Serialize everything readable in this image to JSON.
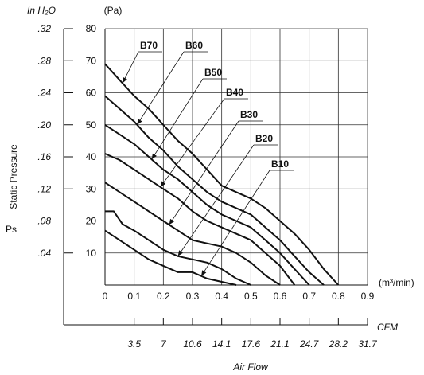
{
  "chart_data": {
    "type": "line",
    "ylabel": "Static Pressure",
    "ylabel_symbol": "Ps",
    "y_unit_primary": "(Pa)",
    "y_unit_secondary": "In H₂O",
    "x_unit_primary": "(m³/min)",
    "x_unit_secondary": "CFM",
    "xlabel": "Air Flow",
    "xlim": [
      0,
      0.9
    ],
    "ylim": [
      0,
      80
    ],
    "grid": true,
    "x_ticks": [
      "0",
      "0.1",
      "0.2",
      "0.3",
      "0.4",
      "0.5",
      "0.6",
      "0.7",
      "0.8",
      "0.9"
    ],
    "y_ticks": [
      "10",
      "20",
      "30",
      "40",
      "50",
      "60",
      "70",
      "80"
    ],
    "y_ticks_secondary": [
      {
        "label": ".04",
        "pa": 10
      },
      {
        "label": ".08",
        "pa": 20
      },
      {
        "label": ".12",
        "pa": 30
      },
      {
        "label": ".16",
        "pa": 40
      },
      {
        "label": ".20",
        "pa": 50
      },
      {
        "label": ".24",
        "pa": 60
      },
      {
        "label": ".28",
        "pa": 70
      },
      {
        "label": ".32",
        "pa": 80
      }
    ],
    "x_ticks_secondary": [
      {
        "label": "3.5",
        "m3": 0.1
      },
      {
        "label": "7",
        "m3": 0.2
      },
      {
        "label": "10.6",
        "m3": 0.3
      },
      {
        "label": "14.1",
        "m3": 0.4
      },
      {
        "label": "17.6",
        "m3": 0.5
      },
      {
        "label": "21.1",
        "m3": 0.6
      },
      {
        "label": "24.7",
        "m3": 0.7
      },
      {
        "label": "28.2",
        "m3": 0.8
      },
      {
        "label": "31.7",
        "m3": 0.9
      }
    ],
    "series": [
      {
        "name": "B70",
        "x": [
          0,
          0.05,
          0.1,
          0.15,
          0.2,
          0.25,
          0.3,
          0.35,
          0.4,
          0.45,
          0.5,
          0.55,
          0.6,
          0.65,
          0.7,
          0.75,
          0.8
        ],
        "y": [
          69,
          64,
          59,
          55,
          50,
          45,
          41,
          36,
          31,
          29,
          27,
          24,
          20,
          16,
          11,
          5,
          0
        ]
      },
      {
        "name": "B60",
        "x": [
          0,
          0.05,
          0.1,
          0.15,
          0.2,
          0.25,
          0.3,
          0.35,
          0.4,
          0.45,
          0.5,
          0.55,
          0.6,
          0.65,
          0.7,
          0.75
        ],
        "y": [
          59,
          55,
          51,
          46,
          42,
          37,
          33,
          29,
          26,
          24,
          22,
          18,
          14,
          9,
          4,
          0
        ]
      },
      {
        "name": "B50",
        "x": [
          0,
          0.05,
          0.1,
          0.15,
          0.2,
          0.25,
          0.3,
          0.35,
          0.4,
          0.45,
          0.5,
          0.55,
          0.6,
          0.65,
          0.7
        ],
        "y": [
          50,
          47,
          44,
          40,
          36,
          33,
          29,
          25,
          22,
          20,
          18,
          14,
          10,
          5,
          0
        ]
      },
      {
        "name": "B40",
        "x": [
          0,
          0.05,
          0.1,
          0.15,
          0.2,
          0.25,
          0.3,
          0.35,
          0.4,
          0.45,
          0.5,
          0.55,
          0.6,
          0.65
        ],
        "y": [
          41,
          39,
          36,
          33,
          30,
          27,
          23,
          20,
          18,
          16,
          14,
          10,
          6,
          0
        ]
      },
      {
        "name": "B30",
        "x": [
          0,
          0.05,
          0.1,
          0.15,
          0.2,
          0.25,
          0.3,
          0.35,
          0.4,
          0.45,
          0.5,
          0.55,
          0.6
        ],
        "y": [
          32,
          29,
          26,
          23,
          20,
          17,
          14,
          13,
          12,
          10,
          7,
          3,
          0
        ]
      },
      {
        "name": "B20",
        "x": [
          0,
          0.03,
          0.06,
          0.1,
          0.15,
          0.2,
          0.25,
          0.3,
          0.35,
          0.4,
          0.45,
          0.5
        ],
        "y": [
          23,
          23,
          19,
          17,
          14,
          11,
          9,
          8,
          7,
          5,
          2,
          0
        ]
      },
      {
        "name": "B10",
        "x": [
          0,
          0.05,
          0.1,
          0.15,
          0.2,
          0.25,
          0.3,
          0.35,
          0.4,
          0.45
        ],
        "y": [
          17,
          14,
          11,
          8,
          6,
          4,
          4,
          2,
          1,
          0
        ]
      }
    ]
  }
}
